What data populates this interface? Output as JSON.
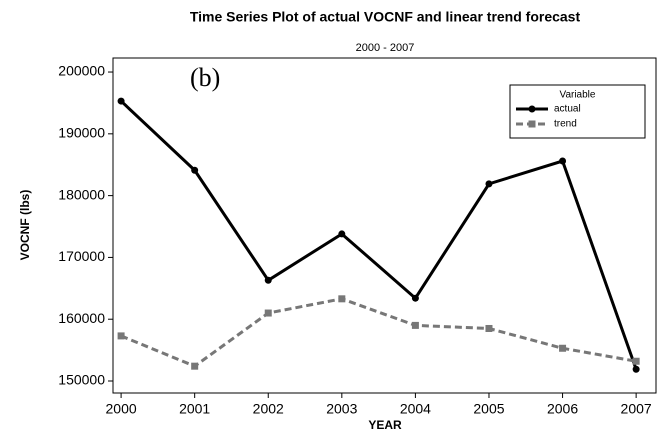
{
  "chart_data": {
    "type": "line",
    "title": "Time Series Plot of actual VOCNF and linear trend forecast",
    "subtitle": "2000 - 2007",
    "annotation": "(b)",
    "x_label": "YEAR",
    "y_label": "VOCNF (lbs)",
    "x": [
      2000,
      2001,
      2002,
      2003,
      2004,
      2005,
      2006,
      2007
    ],
    "series": [
      {
        "name": "actual",
        "color": "#000000",
        "values": [
          195300,
          184100,
          166300,
          173800,
          163400,
          181900,
          185600,
          151900
        ]
      },
      {
        "name": "trend",
        "color": "#777777",
        "values": [
          157300,
          152400,
          161000,
          163300,
          159000,
          158500,
          155300,
          153200
        ]
      }
    ],
    "legend_title": "Variable",
    "legend": "upper right",
    "xlim": [
      1999.89,
      2007.27
    ],
    "xticks": [
      2000,
      2001,
      2002,
      2003,
      2004,
      2005,
      2006,
      2007
    ],
    "ylim": [
      148060,
      202270
    ],
    "yticks": [
      150000,
      160000,
      170000,
      180000,
      190000,
      200000
    ]
  }
}
